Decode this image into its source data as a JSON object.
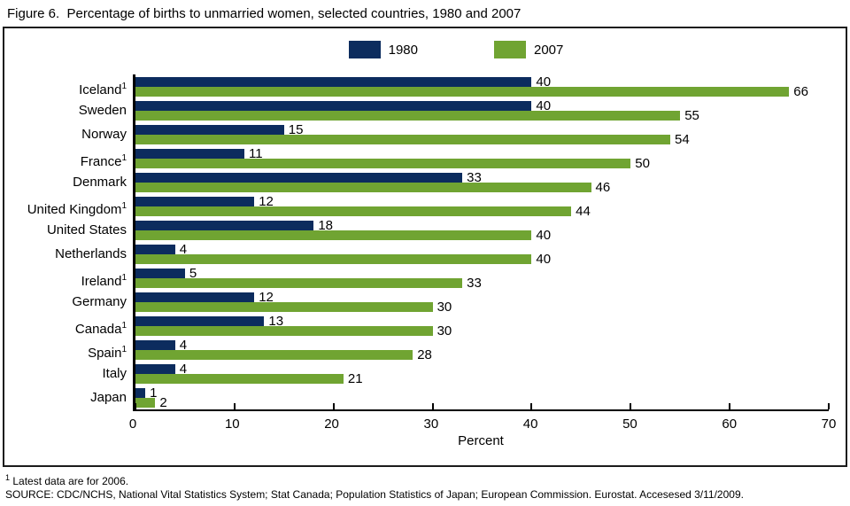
{
  "title": "Figure 6.  Percentage of births to unmarried women, selected countries, 1980 and 2007",
  "legend": {
    "items": [
      {
        "label": "1980",
        "color": "#0c2c5e"
      },
      {
        "label": "2007",
        "color": "#70a432"
      }
    ]
  },
  "x_axis": {
    "label": "Percent",
    "ticks": [
      0,
      10,
      20,
      30,
      40,
      50,
      60,
      70
    ]
  },
  "footnotes": {
    "note1": {
      "marker": "1",
      "text": " Latest data are for 2006."
    },
    "source": "SOURCE: CDC/NCHS, National Vital Statistics System; Stat Canada; Population Statistics of Japan; European Commission.  Eurostat.  Accesesed 3/11/2009."
  },
  "chart_data": {
    "type": "bar",
    "orientation": "horizontal",
    "title": "Figure 6.  Percentage of births to unmarried women, selected countries, 1980 and 2007",
    "xlabel": "Percent",
    "xlim": [
      0,
      70
    ],
    "grid": false,
    "legend_position": "top-center",
    "bar_value_labels": true,
    "categories": [
      {
        "name": "Iceland",
        "footnote_marker": "1"
      },
      {
        "name": "Sweden"
      },
      {
        "name": "Norway"
      },
      {
        "name": "France",
        "footnote_marker": "1"
      },
      {
        "name": "Denmark"
      },
      {
        "name": "United Kingdom",
        "footnote_marker": "1"
      },
      {
        "name": "United States"
      },
      {
        "name": "Netherlands"
      },
      {
        "name": "Ireland",
        "footnote_marker": "1"
      },
      {
        "name": "Germany"
      },
      {
        "name": "Canada",
        "footnote_marker": "1"
      },
      {
        "name": "Spain",
        "footnote_marker": "1"
      },
      {
        "name": "Italy"
      },
      {
        "name": "Japan"
      }
    ],
    "series": [
      {
        "name": "1980",
        "color": "#0c2c5e",
        "values": [
          40,
          40,
          15,
          11,
          33,
          12,
          18,
          4,
          5,
          12,
          13,
          4,
          4,
          1
        ]
      },
      {
        "name": "2007",
        "color": "#70a432",
        "values": [
          66,
          55,
          54,
          50,
          46,
          44,
          40,
          40,
          33,
          30,
          30,
          28,
          21,
          2
        ]
      }
    ]
  }
}
